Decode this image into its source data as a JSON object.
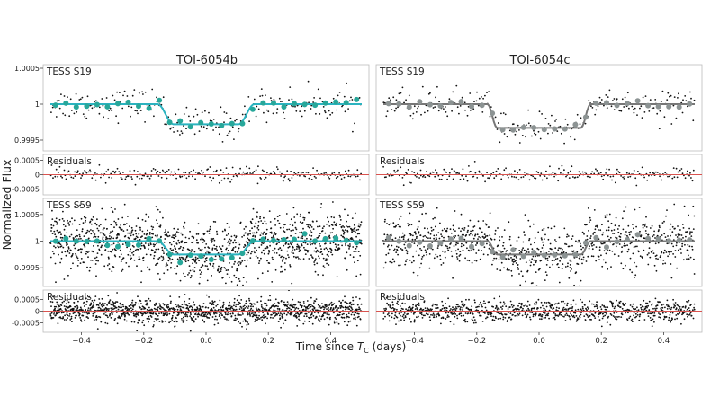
{
  "chart_data": {
    "type": "scatter",
    "xlabel": "Time since T_C (days)",
    "xlabel_parts": {
      "pre": "Time since ",
      "sym": "T",
      "sub": "C",
      "post": " (days)"
    },
    "ylabel": "Normalized Flux",
    "xlim": [
      -0.5,
      0.5
    ],
    "xticks": [
      -0.4,
      -0.2,
      0.0,
      0.2,
      0.4
    ],
    "xtick_labels": [
      "−0.4",
      "−0.2",
      "0.0",
      "0.2",
      "0.4"
    ],
    "colors": {
      "points": "#111111",
      "model_b": "#2bb3c0",
      "binned_b": "#27a79a",
      "model_c": "#777777",
      "binned_c": "#8c9393",
      "residual_line": "#d9534f",
      "frame": "#bbbbbb"
    },
    "planets": [
      {
        "name": "TOI-6054b",
        "panels": [
          {
            "label": "TESS S19",
            "kind": "flux",
            "ylim": [
              0.99935,
              1.00055
            ],
            "ytick_values": [
              0.9995,
              1.0,
              1.0005
            ],
            "ytick_labels": [
              "0.9995",
              "1",
              "1.0005"
            ],
            "depth": 0.00028,
            "t1": 0.155,
            "t2": 0.105,
            "scatter": 0.00011,
            "n_points": 240,
            "binned": true
          },
          {
            "label": "Residuals",
            "kind": "resid",
            "ylim": [
              -0.0007,
              0.0007
            ],
            "ytick_values": [
              -0.0005,
              0.0,
              0.0005
            ],
            "ytick_labels": [
              "-0.0005",
              "0",
              "0.0005"
            ],
            "scatter": 0.00012,
            "n_points": 240
          },
          {
            "label": "TESS S59",
            "kind": "flux",
            "ylim": [
              0.99915,
              1.0008
            ],
            "ytick_values": [
              0.9995,
              1.0,
              1.0005
            ],
            "ytick_labels": [
              "0.9995",
              "1",
              "1.0005"
            ],
            "depth": 0.00025,
            "t1": 0.155,
            "t2": 0.105,
            "scatter": 0.00027,
            "n_points": 1300,
            "binned": true
          },
          {
            "label": "Residuals",
            "kind": "resid",
            "ylim": [
              -0.0009,
              0.0009
            ],
            "ytick_values": [
              -0.0005,
              0.0,
              0.0005
            ],
            "ytick_labels": [
              "-0.0005",
              "0",
              "0.0005"
            ],
            "scatter": 0.00025,
            "n_points": 1300
          }
        ]
      },
      {
        "name": "TOI-6054c",
        "panels": [
          {
            "label": "TESS S19",
            "kind": "flux",
            "ylim": [
              0.99935,
              1.00055
            ],
            "depth": 0.00033,
            "t1": 0.165,
            "t2": 0.135,
            "scatter": 0.00011,
            "n_points": 240,
            "binned": true
          },
          {
            "label": "Residuals",
            "kind": "resid",
            "ylim": [
              -0.0007,
              0.0007
            ],
            "scatter": 0.00012,
            "n_points": 240
          },
          {
            "label": "TESS S59",
            "kind": "flux",
            "ylim": [
              0.99915,
              1.0008
            ],
            "depth": 0.00025,
            "t1": 0.165,
            "t2": 0.135,
            "scatter": 0.00025,
            "n_points": 900,
            "binned": true
          },
          {
            "label": "Residuals",
            "kind": "resid",
            "ylim": [
              -0.0009,
              0.0009
            ],
            "scatter": 0.00022,
            "n_points": 900
          }
        ]
      }
    ]
  }
}
